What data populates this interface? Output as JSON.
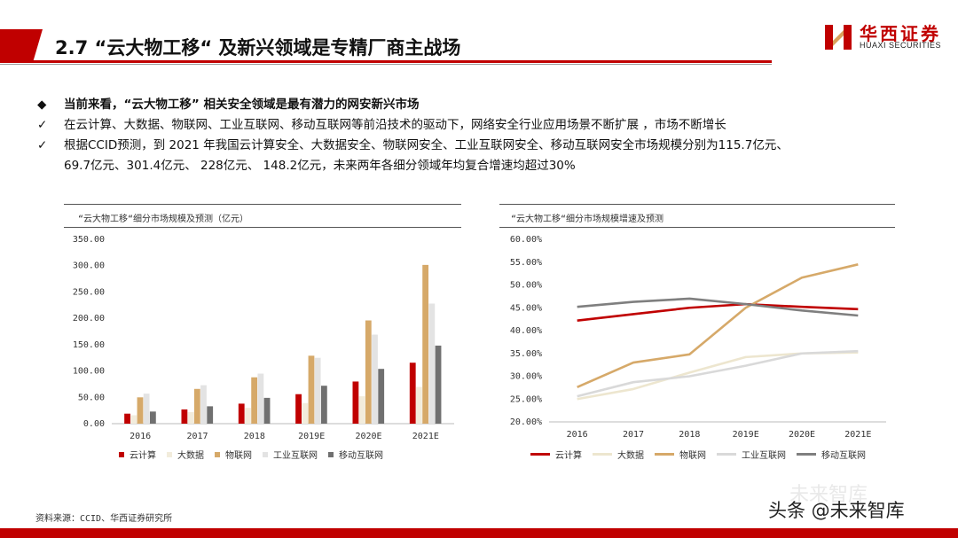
{
  "header": {
    "title": "2.7 “云大物工移“ 及新兴领域是专精厂商主战场",
    "logo_cn": "华西证券",
    "logo_en": "HUAXI SECURITIES"
  },
  "bullets": [
    {
      "marker": "◆",
      "text": "当前来看，“云大物工移” 相关安全领域是最有潜力的网安新兴市场"
    },
    {
      "marker": "✓",
      "text": "在云计算、大数据、物联网、工业互联网、移动互联网等前沿技术的驱动下，网络安全行业应用场景不断扩展 ，市场不断增长"
    },
    {
      "marker": "✓",
      "text": "根据CCID预测，到 2021 年我国云计算安全、大数据安全、物联网安全、工业互联网安全、移动互联网安全市场规模分别为115.7亿元、"
    },
    {
      "marker": "",
      "text": "69.7亿元、301.4亿元、 228亿元、 148.2亿元，未来两年各细分领域年均复合增速均超过30%"
    }
  ],
  "chart_data": [
    {
      "type": "bar",
      "title": "“云大物工移“细分市场规模及预测（亿元）",
      "categories": [
        "2016",
        "2017",
        "2018",
        "2019E",
        "2020E",
        "2021E"
      ],
      "ylim": [
        0,
        350
      ],
      "yticks": [
        "0.00",
        "50.00",
        "100.00",
        "150.00",
        "200.00",
        "250.00",
        "300.00",
        "350.00"
      ],
      "legend_position": "bottom",
      "series": [
        {
          "name": "云计算",
          "color": "#c00000",
          "values": [
            19,
            27,
            38,
            56,
            80,
            115.7
          ]
        },
        {
          "name": "大数据",
          "color": "#f2ecdc",
          "values": [
            16,
            22,
            30,
            39,
            52,
            69.7
          ]
        },
        {
          "name": "物联网",
          "color": "#d6a969",
          "values": [
            50,
            66,
            88,
            129,
            196,
            301.4
          ]
        },
        {
          "name": "工业互联网",
          "color": "#e3e3e3",
          "values": [
            57,
            73,
            95,
            125,
            169,
            228
          ]
        },
        {
          "name": "移动互联网",
          "color": "#707070",
          "values": [
            23,
            33,
            49,
            72,
            104,
            148.2
          ]
        }
      ]
    },
    {
      "type": "line",
      "title": "“云大物工移“细分市场规模增速及预测",
      "categories": [
        "2016",
        "2017",
        "2018",
        "2019E",
        "2020E",
        "2021E"
      ],
      "ylim": [
        20,
        60
      ],
      "yticks": [
        "20.00%",
        "25.00%",
        "30.00%",
        "35.00%",
        "40.00%",
        "45.00%",
        "50.00%",
        "55.00%",
        "60.00%"
      ],
      "legend_position": "bottom",
      "series": [
        {
          "name": "云计算",
          "color": "#c00000",
          "values": [
            42.2,
            43.6,
            45.0,
            45.8,
            45.2,
            44.7
          ]
        },
        {
          "name": "大数据",
          "color": "#ede6cf",
          "values": [
            25.0,
            27.2,
            30.8,
            34.2,
            35.0,
            35.2
          ]
        },
        {
          "name": "物联网",
          "color": "#d6a969",
          "values": [
            27.6,
            33.0,
            34.8,
            45.0,
            51.6,
            54.5
          ]
        },
        {
          "name": "工业互联网",
          "color": "#d9d9d9",
          "values": [
            25.6,
            28.7,
            30.0,
            32.3,
            35.0,
            35.5
          ]
        },
        {
          "name": "移动互联网",
          "color": "#7f7f7f",
          "values": [
            45.2,
            46.3,
            47.0,
            45.8,
            44.4,
            43.3
          ]
        }
      ]
    }
  ],
  "footer": {
    "source": "资料来源：CCID、华西证券研究所",
    "watermark": "头条 @未来智库",
    "watermark_bg": "未来智库"
  }
}
